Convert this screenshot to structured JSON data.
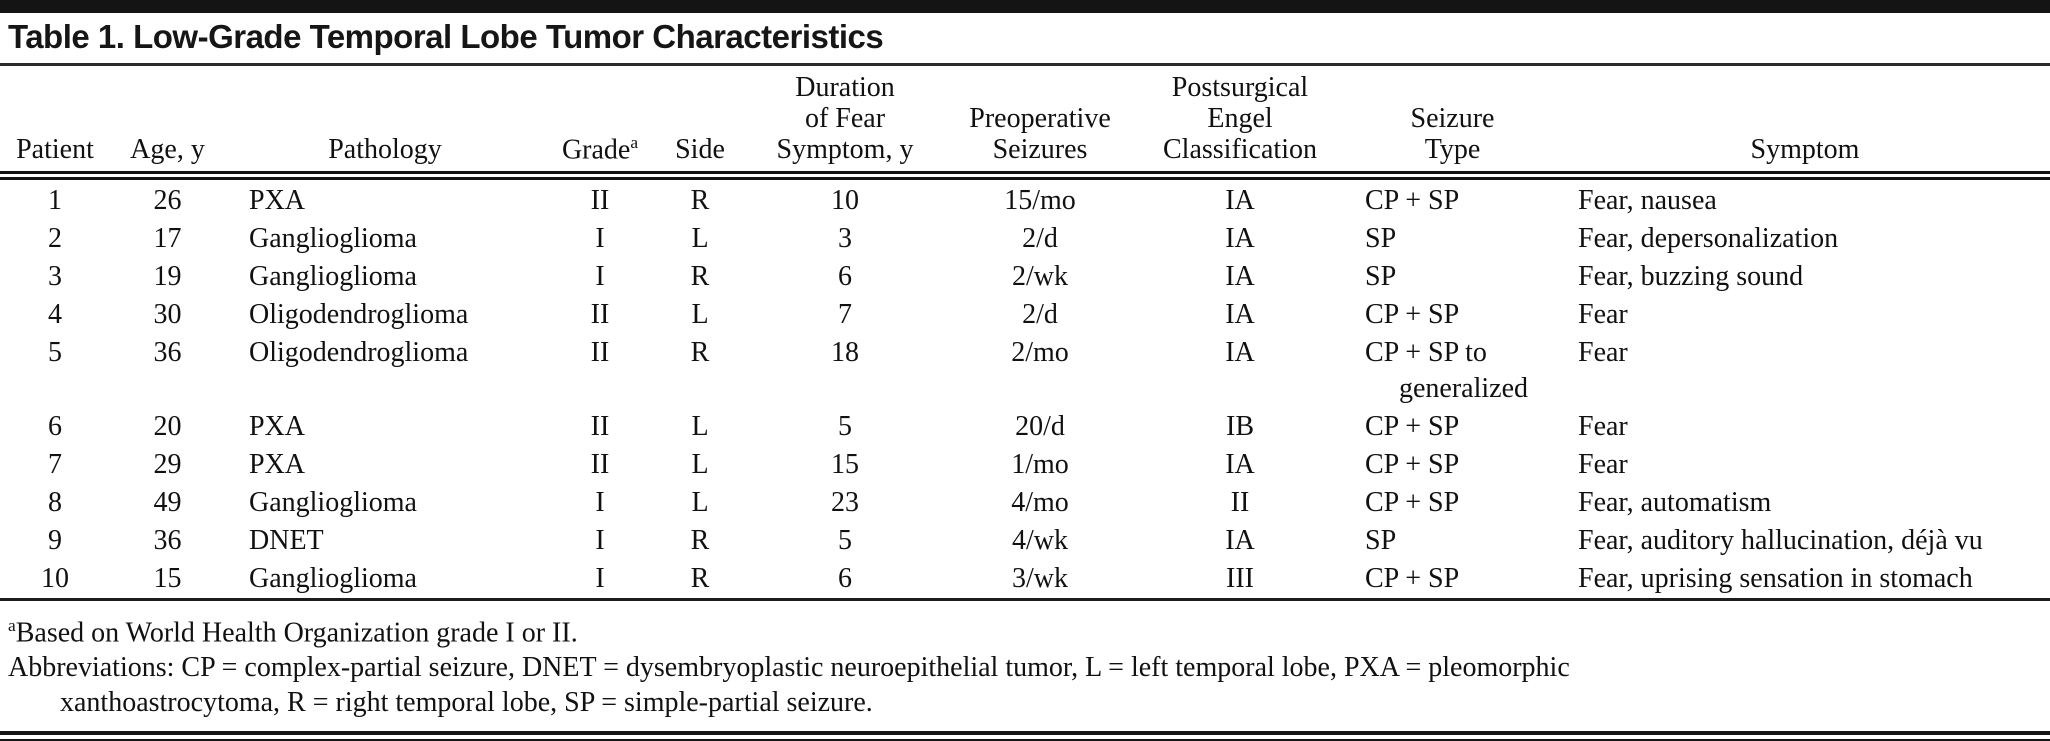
{
  "title": "Table 1. Low-Grade Temporal Lobe Tumor Characteristics",
  "table": {
    "columns": [
      {
        "key": "patient",
        "lines": [
          "Patient"
        ]
      },
      {
        "key": "age",
        "lines": [
          "Age, y"
        ]
      },
      {
        "key": "pathology",
        "lines": [
          "Pathology"
        ]
      },
      {
        "key": "grade",
        "lines": [
          "Grade"
        ],
        "sup": "a"
      },
      {
        "key": "side",
        "lines": [
          "Side"
        ]
      },
      {
        "key": "duration",
        "lines": [
          "Duration",
          "of Fear",
          "Symptom, y"
        ]
      },
      {
        "key": "preop-seizures",
        "lines": [
          "Preoperative",
          "Seizures"
        ]
      },
      {
        "key": "engel",
        "lines": [
          "Postsurgical",
          "Engel",
          "Classification"
        ]
      },
      {
        "key": "seizure-type",
        "lines": [
          "Seizure",
          "Type"
        ]
      },
      {
        "key": "symptom",
        "lines": [
          "Symptom"
        ]
      }
    ],
    "rows": [
      [
        "1",
        "26",
        "PXA",
        "II",
        "R",
        "10",
        "15/mo",
        "IA",
        "CP + SP",
        "Fear, nausea"
      ],
      [
        "2",
        "17",
        "Ganglioglioma",
        "I",
        "L",
        "3",
        "2/d",
        "IA",
        "SP",
        "Fear, depersonalization"
      ],
      [
        "3",
        "19",
        "Ganglioglioma",
        "I",
        "R",
        "6",
        "2/wk",
        "IA",
        "SP",
        "Fear, buzzing sound"
      ],
      [
        "4",
        "30",
        "Oligodendroglioma",
        "II",
        "L",
        "7",
        "2/d",
        "IA",
        "CP + SP",
        "Fear"
      ],
      [
        "5",
        "36",
        "Oligodendroglioma",
        "II",
        "R",
        "18",
        "2/mo",
        "IA",
        [
          "CP + SP to",
          "generalized"
        ],
        "Fear"
      ],
      [
        "6",
        "20",
        "PXA",
        "II",
        "L",
        "5",
        "20/d",
        "IB",
        "CP + SP",
        "Fear"
      ],
      [
        "7",
        "29",
        "PXA",
        "II",
        "L",
        "15",
        "1/mo",
        "IA",
        "CP + SP",
        "Fear"
      ],
      [
        "8",
        "49",
        "Ganglioglioma",
        "I",
        "L",
        "23",
        "4/mo",
        "II",
        "CP + SP",
        "Fear, automatism"
      ],
      [
        "9",
        "36",
        "DNET",
        "I",
        "R",
        "5",
        "4/wk",
        "IA",
        "SP",
        "Fear, auditory hallucination, déjà vu"
      ],
      [
        "10",
        "15",
        "Ganglioglioma",
        "I",
        "R",
        "6",
        "3/wk",
        "III",
        "CP + SP",
        "Fear, uprising sensation in stomach"
      ]
    ]
  },
  "footnotes": {
    "marker": "a",
    "grade_note": "Based on World Health Organization grade I or II.",
    "abbreviations_line1": "Abbreviations: CP = complex-partial seizure, DNET = dysembryoplastic neuroepithelial tumor, L = left temporal lobe, PXA = pleomorphic",
    "abbreviations_line2": "xanthoastrocytoma, R = right temporal lobe, SP = simple-partial seizure."
  }
}
